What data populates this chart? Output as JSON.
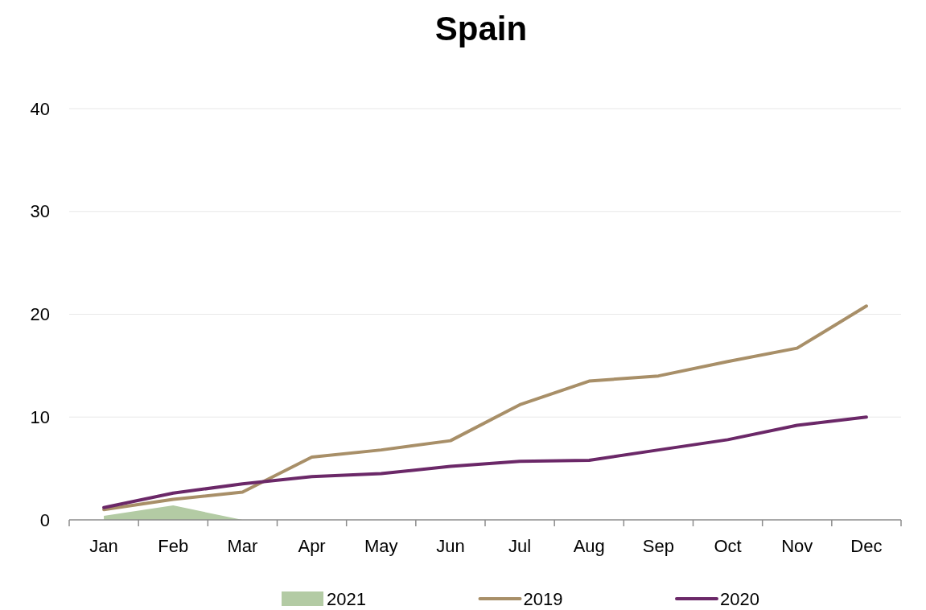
{
  "chart_data": {
    "type": "line",
    "title": "Spain",
    "categories": [
      "Jan",
      "Feb",
      "Mar",
      "Apr",
      "May",
      "Jun",
      "Jul",
      "Aug",
      "Sep",
      "Oct",
      "Nov",
      "Dec"
    ],
    "series": [
      {
        "name": "2021",
        "type": "area",
        "color": "#b3cba4",
        "values": [
          0.4,
          1.4,
          0,
          null,
          null,
          null,
          null,
          null,
          null,
          null,
          null,
          null
        ]
      },
      {
        "name": "2019",
        "color": "#a88f68",
        "values": [
          1.0,
          2.0,
          2.7,
          6.1,
          6.8,
          7.7,
          11.2,
          13.5,
          14.0,
          15.4,
          16.7,
          20.8
        ]
      },
      {
        "name": "2020",
        "color": "#6b2868",
        "values": [
          1.2,
          2.6,
          3.5,
          4.2,
          4.5,
          5.2,
          5.7,
          5.8,
          6.8,
          7.8,
          9.2,
          10.0
        ]
      }
    ],
    "ylim": [
      0,
      40
    ],
    "yticks": [
      0,
      10,
      20,
      30,
      40
    ],
    "grid": "y",
    "legend": "bottom",
    "line_style": "solid"
  }
}
